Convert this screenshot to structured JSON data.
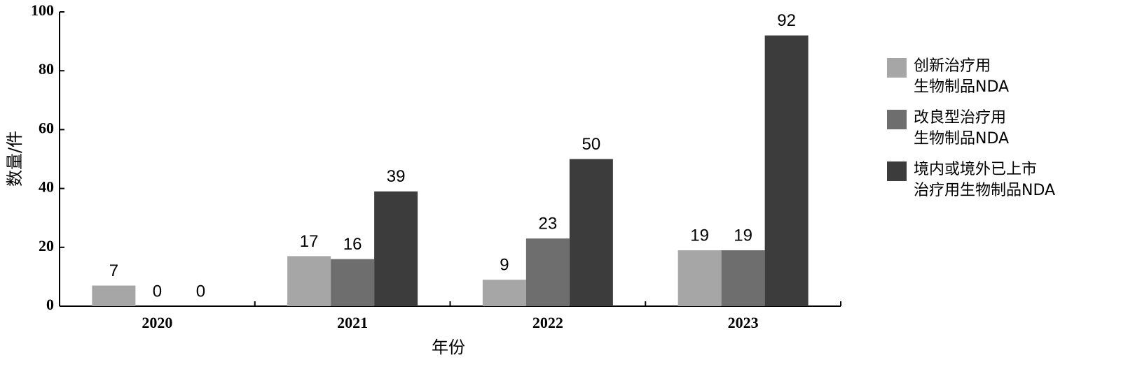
{
  "chart_data": {
    "type": "bar",
    "x_label": "年份",
    "y_label": "数量/件",
    "categories": [
      "2020",
      "2021",
      "2022",
      "2023"
    ],
    "series": [
      {
        "name": "创新治疗用\n生物制品NDA",
        "color": "#a6a6a6",
        "values": [
          7,
          17,
          9,
          19
        ]
      },
      {
        "name": "改良型治疗用\n生物制品NDA",
        "color": "#6e6e6e",
        "values": [
          0,
          16,
          23,
          19
        ]
      },
      {
        "name": "境内或境外已上市\n治疗用生物制品NDA",
        "color": "#3c3c3c",
        "values": [
          0,
          39,
          50,
          92
        ]
      }
    ],
    "ylim": [
      0,
      100
    ],
    "yticks": [
      0,
      20,
      40,
      60,
      80,
      100
    ],
    "grid": false,
    "legend": "right"
  }
}
